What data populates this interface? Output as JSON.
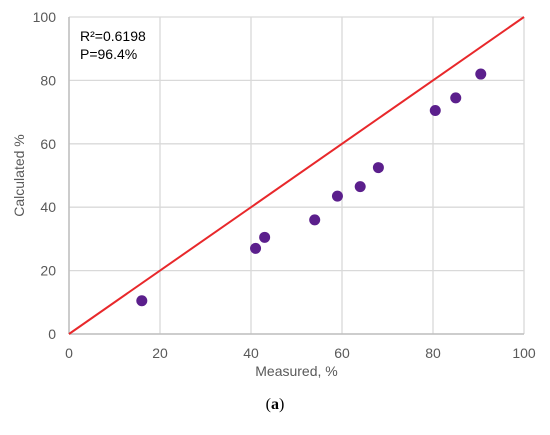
{
  "chart_data": {
    "type": "scatter",
    "xlabel": "Measured, %",
    "ylabel": "Calculated %",
    "xlim": [
      0,
      100
    ],
    "ylim": [
      0,
      100
    ],
    "x_ticks": [
      0,
      20,
      40,
      60,
      80,
      100
    ],
    "y_ticks": [
      0,
      20,
      40,
      60,
      80,
      100
    ],
    "grid": true,
    "points": [
      {
        "x": 16,
        "y": 10.5
      },
      {
        "x": 41,
        "y": 27
      },
      {
        "x": 43,
        "y": 30.5
      },
      {
        "x": 54,
        "y": 36
      },
      {
        "x": 59,
        "y": 43.5
      },
      {
        "x": 64,
        "y": 46.5
      },
      {
        "x": 68,
        "y": 52.5
      },
      {
        "x": 80.5,
        "y": 70.5
      },
      {
        "x": 85,
        "y": 74.5
      },
      {
        "x": 90.5,
        "y": 82
      }
    ],
    "reference_line": {
      "from": [
        0,
        0
      ],
      "to": [
        100,
        100
      ]
    },
    "annotations": [
      "R²=0.6198",
      "P=96.4%"
    ],
    "colors": {
      "points": "#5b1f8c",
      "line": "#e8282b",
      "grid": "#d9d9d9",
      "axis": "#bfbfbf"
    }
  },
  "caption": {
    "open": "(",
    "label": "a",
    "close": ")"
  }
}
